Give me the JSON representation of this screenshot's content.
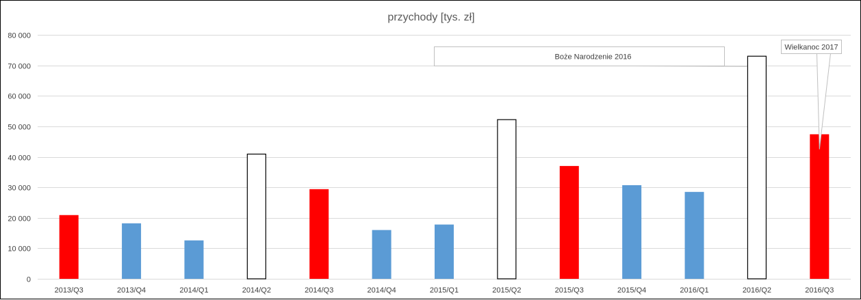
{
  "colors": {
    "easter": "#ff0000",
    "regular": "#5b9bd5",
    "christmas_fill": "#ffffff",
    "christmas_stroke": "#000000",
    "grid": "#d9d9d9",
    "callout_border": "#bfbfbf",
    "text": "#404040"
  },
  "chart_data": {
    "type": "bar",
    "title": "przychody [tys. zł]",
    "xlabel": "",
    "ylabel": "",
    "ylim": [
      0,
      80000
    ],
    "yticks": [
      0,
      10000,
      20000,
      30000,
      40000,
      50000,
      60000,
      70000,
      80000
    ],
    "ytick_labels": [
      "0",
      "10 000",
      "20 000",
      "30 000",
      "40 000",
      "50 000",
      "60 000",
      "70 000",
      "80 000"
    ],
    "grid": true,
    "legend": "none",
    "categories": [
      "2013/Q3",
      "2013/Q4",
      "2014/Q1",
      "2014/Q2",
      "2014/Q3",
      "2014/Q4",
      "2015/Q1",
      "2015/Q2",
      "2015/Q3",
      "2015/Q4",
      "2016/Q1",
      "2016/Q2",
      "2016/Q3"
    ],
    "values": [
      20900,
      18200,
      12600,
      40900,
      29400,
      16000,
      17800,
      52200,
      37000,
      30700,
      28500,
      73000,
      47400
    ],
    "bar_styles": [
      "easter",
      "regular",
      "regular",
      "christmas",
      "easter",
      "regular",
      "regular",
      "christmas",
      "easter",
      "regular",
      "regular",
      "christmas",
      "easter"
    ],
    "annotations": [
      {
        "text": "Boże Narodzenie 2016",
        "category": "2016/Q2"
      },
      {
        "text": "Wielkanoc 2017",
        "category": "2016/Q3"
      }
    ]
  }
}
